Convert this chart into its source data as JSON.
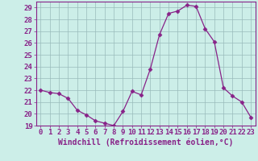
{
  "x": [
    0,
    1,
    2,
    3,
    4,
    5,
    6,
    7,
    8,
    9,
    10,
    11,
    12,
    13,
    14,
    15,
    16,
    17,
    18,
    19,
    20,
    21,
    22,
    23
  ],
  "y": [
    22.0,
    21.8,
    21.7,
    21.3,
    20.3,
    19.9,
    19.4,
    19.2,
    19.0,
    20.2,
    21.9,
    21.6,
    23.8,
    26.7,
    28.5,
    28.7,
    29.2,
    29.1,
    27.2,
    26.1,
    22.2,
    21.5,
    21.0,
    19.7
  ],
  "line_color": "#882288",
  "marker": "D",
  "marker_size": 2.5,
  "background_color": "#cceee8",
  "grid_color": "#99bbbb",
  "xlabel": "Windchill (Refroidissement éolien,°C)",
  "xlabel_fontsize": 7,
  "tick_fontsize": 6.5,
  "ylim": [
    19,
    29.5
  ],
  "yticks": [
    19,
    20,
    21,
    22,
    23,
    24,
    25,
    26,
    27,
    28,
    29
  ],
  "xlim": [
    -0.5,
    23.5
  ],
  "xticks": [
    0,
    1,
    2,
    3,
    4,
    5,
    6,
    7,
    8,
    9,
    10,
    11,
    12,
    13,
    14,
    15,
    16,
    17,
    18,
    19,
    20,
    21,
    22,
    23
  ]
}
